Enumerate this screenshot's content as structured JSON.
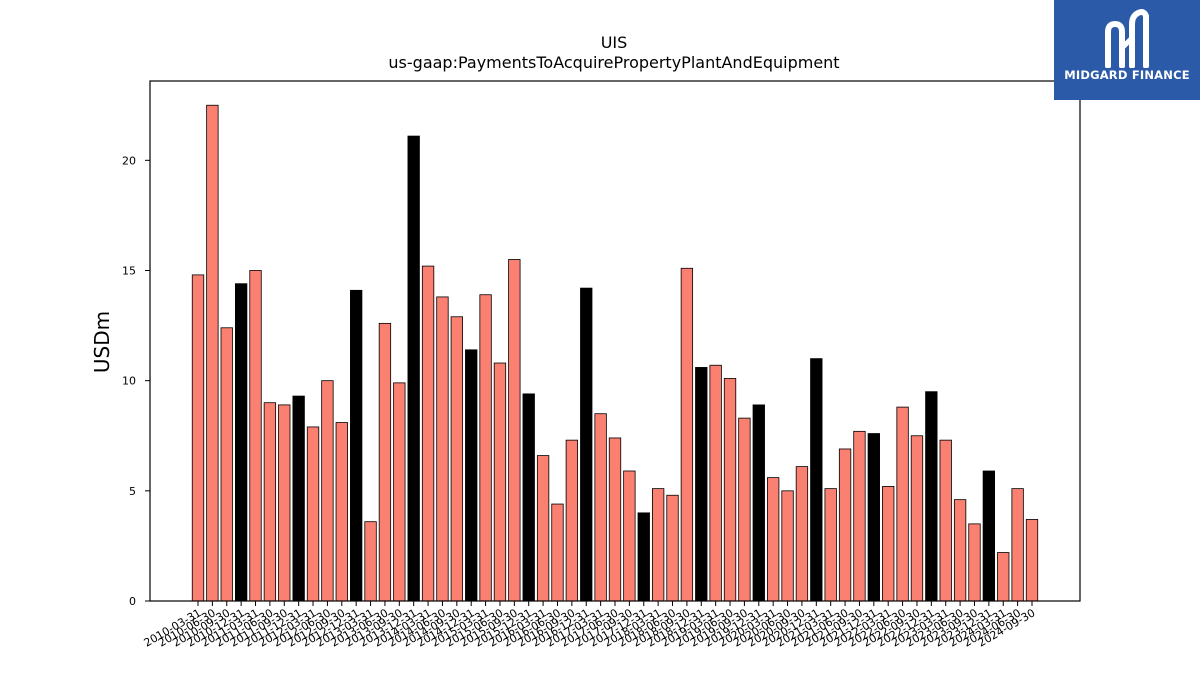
{
  "chart_data": {
    "type": "bar",
    "title": "UIS",
    "subtitle": "us-gaap:PaymentsToAcquirePropertyPlantAndEquipment",
    "ylabel": "USDm",
    "xlabel": "",
    "ylim": [
      0,
      23.6
    ],
    "yticks": [
      0,
      5,
      10,
      15,
      20
    ],
    "grid": false,
    "categories": [
      "2010-03-31",
      "2010-06-30",
      "2010-09-30",
      "2010-12-31",
      "2011-03-31",
      "2011-06-30",
      "2011-09-30",
      "2011-12-31",
      "2012-03-31",
      "2012-06-30",
      "2012-09-30",
      "2012-12-31",
      "2013-03-31",
      "2013-06-30",
      "2013-09-30",
      "2013-12-31",
      "2014-03-31",
      "2014-06-30",
      "2014-09-30",
      "2014-12-31",
      "2015-03-31",
      "2015-06-30",
      "2015-09-30",
      "2015-12-31",
      "2016-03-31",
      "2016-06-30",
      "2016-09-30",
      "2016-12-31",
      "2017-03-31",
      "2017-06-30",
      "2017-09-30",
      "2017-12-31",
      "2018-03-31",
      "2018-06-30",
      "2018-09-30",
      "2018-12-31",
      "2019-03-31",
      "2019-06-30",
      "2019-09-30",
      "2019-12-31",
      "2020-03-31",
      "2020-06-30",
      "2020-09-30",
      "2020-12-31",
      "2021-03-31",
      "2021-06-30",
      "2021-09-30",
      "2021-12-31",
      "2022-03-31",
      "2022-06-30",
      "2022-09-30",
      "2022-12-31",
      "2023-03-31",
      "2023-06-30",
      "2023-09-30",
      "2023-12-31",
      "2024-03-31",
      "2024-06-30",
      "2024-09-30"
    ],
    "values": [
      14.8,
      22.5,
      12.4,
      14.4,
      15.0,
      9.0,
      8.9,
      9.3,
      7.9,
      10.0,
      8.1,
      14.1,
      3.6,
      12.6,
      9.9,
      21.1,
      15.2,
      13.8,
      12.9,
      11.4,
      13.9,
      10.8,
      15.5,
      9.4,
      6.6,
      4.4,
      7.3,
      14.2,
      8.5,
      7.4,
      5.9,
      4.0,
      5.1,
      4.8,
      15.1,
      10.6,
      10.7,
      10.1,
      8.3,
      8.9,
      5.6,
      5.0,
      6.1,
      11.0,
      5.1,
      6.9,
      7.7,
      7.6,
      5.2,
      8.8,
      7.5,
      9.5,
      7.3,
      4.6,
      3.5,
      5.9,
      2.2,
      5.1,
      3.7
    ],
    "colors": {
      "quarter": "#fa8072",
      "year_end": "#000000",
      "edge": "#000000"
    }
  },
  "logo": {
    "text": "MIDGARD FINANCE",
    "background": "#2b5aa8"
  }
}
